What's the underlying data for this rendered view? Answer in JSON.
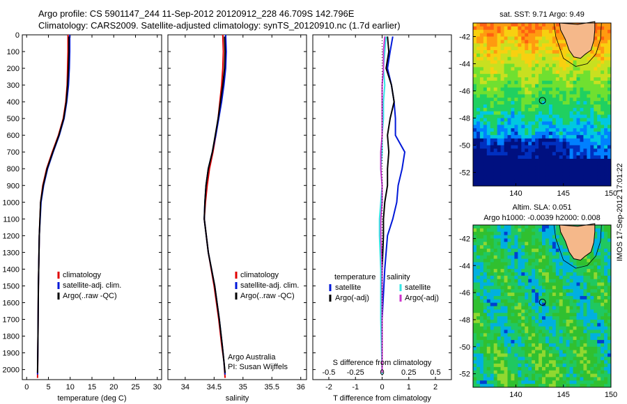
{
  "header": {
    "line1": "Argo profile: CS 5901147_244 11-Sep-2012 20120912_228 46.709S 142.796E",
    "line2": "Climatology: CARS2009. Satellite-adjusted climatology: synTS_20120910.nc (1.7d earlier)"
  },
  "stamp": "IMOS 17-Sep-2012 17:01:22",
  "colors": {
    "climatology": "#e00000",
    "satellite": "#0018d8",
    "argo": "#000000",
    "sat_salinity": "#33e6e6",
    "argo_salinity": "#cc33cc"
  },
  "chart_data": [
    {
      "type": "line",
      "name_key": "temperature_profile",
      "xlabel": "temperature (deg C)",
      "ylabel": "",
      "xlim": [
        -1,
        31
      ],
      "ylim": [
        2060,
        0
      ],
      "xticks": [
        0,
        5,
        10,
        15,
        20,
        25,
        30
      ],
      "yticks": [
        0,
        100,
        200,
        300,
        400,
        500,
        600,
        700,
        800,
        900,
        1000,
        1100,
        1200,
        1300,
        1400,
        1500,
        1600,
        1700,
        1800,
        1900,
        2000
      ],
      "legend": [
        "climatology",
        "satellite-adj. clim.",
        "Argo(..raw -QC)"
      ],
      "series": [
        {
          "name": "climatology",
          "color": "#e00000",
          "x": [
            9.5,
            9.5,
            9.4,
            9.3,
            9.0,
            8.4,
            7.3,
            5.9,
            4.6,
            3.7,
            3.2,
            2.9,
            2.7,
            2.6,
            2.5
          ],
          "y": [
            0,
            100,
            200,
            300,
            400,
            500,
            600,
            700,
            800,
            900,
            1000,
            1200,
            1500,
            1800,
            2050
          ]
        },
        {
          "name": "satellite-adj. clim.",
          "color": "#0018d8",
          "x": [
            9.9,
            9.9,
            9.8,
            9.6,
            9.2,
            8.6,
            7.5,
            6.1,
            4.8,
            3.9,
            3.3,
            2.9,
            2.7,
            2.6,
            2.5
          ],
          "y": [
            0,
            100,
            200,
            300,
            400,
            500,
            600,
            700,
            800,
            900,
            1000,
            1200,
            1500,
            1800,
            2030
          ]
        },
        {
          "name": "Argo(..raw -QC)",
          "color": "#000000",
          "x": [
            9.7,
            9.7,
            9.6,
            9.4,
            9.1,
            8.5,
            7.4,
            6.0,
            4.7,
            3.8,
            3.2,
            2.9,
            2.7,
            2.6,
            2.5
          ],
          "y": [
            10,
            100,
            200,
            300,
            400,
            500,
            600,
            700,
            800,
            900,
            1000,
            1200,
            1500,
            1800,
            2020
          ]
        }
      ]
    },
    {
      "type": "line",
      "name_key": "salinity_profile",
      "xlabel": "salinity",
      "xlim": [
        33.7,
        36.1
      ],
      "ylim": [
        2060,
        0
      ],
      "xticks": [
        34,
        34.5,
        35,
        35.5,
        36
      ],
      "legend": [
        "climatology",
        "satellite-adj. clim.",
        "Argo(..raw -QC)"
      ],
      "annotation": [
        "Argo Australia",
        "PI: Susan Wijffels"
      ],
      "series": [
        {
          "name": "climatology",
          "color": "#e00000",
          "x": [
            34.65,
            34.66,
            34.65,
            34.63,
            34.6,
            34.57,
            34.53,
            34.48,
            34.42,
            34.38,
            34.35,
            34.33,
            34.4,
            34.5,
            34.58,
            34.63,
            34.67,
            34.69
          ],
          "y": [
            0,
            100,
            200,
            300,
            400,
            500,
            600,
            700,
            800,
            900,
            1000,
            1100,
            1300,
            1500,
            1700,
            1850,
            1950,
            2050
          ]
        },
        {
          "name": "satellite-adj. clim.",
          "color": "#0018d8",
          "x": [
            34.7,
            34.71,
            34.7,
            34.67,
            34.63,
            34.58,
            34.53,
            34.47,
            34.4,
            34.36,
            34.34,
            34.33,
            34.4,
            34.51,
            34.59,
            34.64,
            34.67,
            34.69
          ],
          "y": [
            0,
            100,
            200,
            300,
            400,
            500,
            600,
            700,
            800,
            900,
            1000,
            1100,
            1300,
            1500,
            1700,
            1850,
            1950,
            2030
          ]
        },
        {
          "name": "Argo(..raw -QC)",
          "color": "#000000",
          "x": [
            34.68,
            34.69,
            34.68,
            34.65,
            34.61,
            34.57,
            34.52,
            34.47,
            34.4,
            34.36,
            34.34,
            34.33,
            34.4,
            34.51,
            34.59,
            34.64,
            34.67,
            34.69
          ],
          "y": [
            10,
            100,
            200,
            300,
            400,
            500,
            600,
            700,
            800,
            900,
            1000,
            1100,
            1300,
            1500,
            1700,
            1850,
            1950,
            2020
          ]
        }
      ]
    },
    {
      "type": "line",
      "name_key": "difference_profile",
      "xlabel": "T difference from climatology",
      "xlabel_top": "S difference from climatology",
      "xlim": [
        -2.6,
        2.6
      ],
      "ylim": [
        2060,
        0
      ],
      "xticks": [
        -2,
        -1,
        0,
        1,
        2
      ],
      "xticks_top": [
        "-0.5",
        "-0.25",
        "0",
        "0.25",
        "0.5"
      ],
      "xticks_top_pos": [
        -2,
        -1,
        0,
        1,
        2
      ],
      "legend_temperature": {
        "title": "temperature",
        "items": [
          "satellite",
          "Argo(-adj)"
        ]
      },
      "legend_salinity": {
        "title": "salinity",
        "items": [
          "satellite",
          "Argo(-adj)"
        ]
      },
      "series": [
        {
          "name": "T satellite",
          "color": "#0018d8",
          "x": [
            0.4,
            0.3,
            0.2,
            0.35,
            0.45,
            0.5,
            0.5,
            0.85,
            0.75,
            0.6,
            0.55,
            0.4,
            0.2,
            0.1,
            0.0,
            0.0
          ],
          "y": [
            10,
            100,
            200,
            300,
            400,
            500,
            600,
            700,
            800,
            900,
            1000,
            1100,
            1200,
            1400,
            1700,
            2030
          ]
        },
        {
          "name": "T Argo(-adj)",
          "color": "#000000",
          "x": [
            0.2,
            0.25,
            0.15,
            0.35,
            0.45,
            0.3,
            0.2,
            0.25,
            0.2,
            0.2,
            0.1,
            0.05,
            0.05,
            0.0,
            0.0,
            0.0
          ],
          "y": [
            10,
            100,
            200,
            300,
            400,
            500,
            600,
            700,
            800,
            900,
            1000,
            1100,
            1200,
            1400,
            1700,
            2020
          ]
        },
        {
          "name": "S satellite",
          "color": "#33e6e6",
          "x": [
            0.15,
            0.1,
            0.05,
            0.1,
            0.05,
            0.05,
            0.0,
            0.0,
            -0.05,
            0.0,
            -0.05,
            -0.1,
            -0.1,
            -0.05,
            -0.05,
            0.0
          ],
          "y": [
            10,
            100,
            200,
            300,
            400,
            500,
            600,
            700,
            800,
            900,
            1000,
            1100,
            1200,
            1400,
            1700,
            2030
          ]
        },
        {
          "name": "S Argo(-adj)",
          "color": "#cc33cc",
          "x": [
            0.1,
            0.05,
            0.05,
            0.0,
            0.0,
            0.0,
            0.0,
            -0.05,
            -0.05,
            0.0,
            0.0,
            -0.05,
            -0.05,
            0.0,
            0.0,
            0.0
          ],
          "y": [
            10,
            100,
            200,
            300,
            400,
            500,
            600,
            700,
            800,
            900,
            1000,
            1100,
            1200,
            1400,
            1700,
            2020
          ]
        }
      ]
    },
    {
      "type": "heatmap",
      "name_key": "sst_map",
      "title": "sat. SST: 9.71  Argo: 9.49",
      "xlim": [
        135.5,
        150
      ],
      "ylim": [
        -53,
        -41
      ],
      "xticks": [
        140,
        145,
        150
      ],
      "yticks": [
        -42,
        -44,
        -46,
        -48,
        -50,
        -52
      ],
      "marker": {
        "lon": 142.796,
        "lat": -46.709
      }
    },
    {
      "type": "heatmap",
      "name_key": "sla_map",
      "title_line1": "Altim. SLA: 0.051",
      "title_line2": "Argo h1000: -0.0039 h2000: 0.008",
      "xlim": [
        135.5,
        150
      ],
      "ylim": [
        -53,
        -41
      ],
      "xticks": [
        140,
        145,
        150
      ],
      "yticks": [
        -42,
        -44,
        -46,
        -48,
        -50,
        -52
      ],
      "marker": {
        "lon": 142.796,
        "lat": -46.709
      }
    }
  ]
}
